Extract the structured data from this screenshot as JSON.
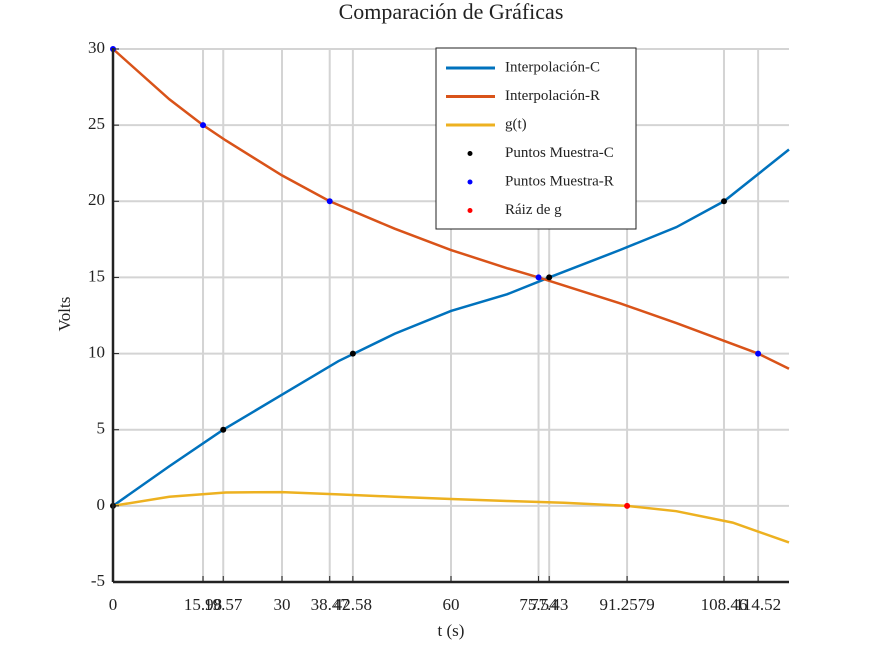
{
  "chart_data": {
    "type": "line",
    "title": "Comparación de Gráficas",
    "x_label": "t (s)",
    "y_label": "Volts",
    "xlim": [
      0,
      120
    ],
    "ylim": [
      -5,
      30
    ],
    "xticks": [
      0,
      15.98,
      19.57,
      30,
      38.47,
      42.58,
      60,
      75.54,
      77.43,
      91.2579,
      108.46,
      114.52
    ],
    "yticks": [
      -5,
      0,
      5,
      10,
      15,
      20,
      25,
      30
    ],
    "grid": true,
    "legend": "top-right",
    "series": [
      {
        "name": "Interpolación-C",
        "color": "#0072bd",
        "type": "line",
        "x": [
          0,
          10,
          19.57,
          30,
          40,
          50,
          60,
          70,
          77.43,
          90,
          100,
          108.46,
          120
        ],
        "values": [
          0,
          2.6,
          5,
          7.3,
          9.5,
          11.3,
          12.8,
          13.9,
          15,
          16.8,
          18.3,
          20,
          23.4
        ]
      },
      {
        "name": "Interpolación-R",
        "color": "#d95319",
        "type": "line",
        "x": [
          0,
          10,
          15.98,
          20,
          30,
          38.47,
          50,
          60,
          70,
          75.54,
          90,
          100,
          114.52,
          120
        ],
        "values": [
          30,
          26.7,
          25,
          24,
          21.7,
          20,
          18.2,
          16.8,
          15.6,
          15,
          13.3,
          12,
          10,
          9
        ]
      },
      {
        "name": "g(t)",
        "color": "#edb120",
        "type": "line",
        "x": [
          0,
          10,
          20,
          30,
          40,
          50,
          60,
          70,
          80,
          91.2579,
          100,
          110,
          120
        ],
        "values": [
          0,
          0.6,
          0.88,
          0.9,
          0.75,
          0.6,
          0.45,
          0.32,
          0.2,
          0,
          -0.35,
          -1.1,
          -2.4
        ]
      },
      {
        "name": "Puntos Muestra-C",
        "color": "#000000",
        "type": "scatter",
        "x": [
          0,
          19.57,
          42.58,
          77.43,
          108.46
        ],
        "values": [
          0,
          5,
          10,
          15,
          20
        ]
      },
      {
        "name": "Puntos Muestra-R",
        "color": "#0000ff",
        "type": "scatter",
        "x": [
          0,
          15.98,
          38.47,
          75.54,
          114.52
        ],
        "values": [
          30,
          25,
          20,
          15,
          10
        ]
      },
      {
        "name": "Ráiz de g",
        "color": "#ff0000",
        "type": "scatter",
        "x": [
          91.2579
        ],
        "values": [
          0
        ]
      }
    ]
  }
}
